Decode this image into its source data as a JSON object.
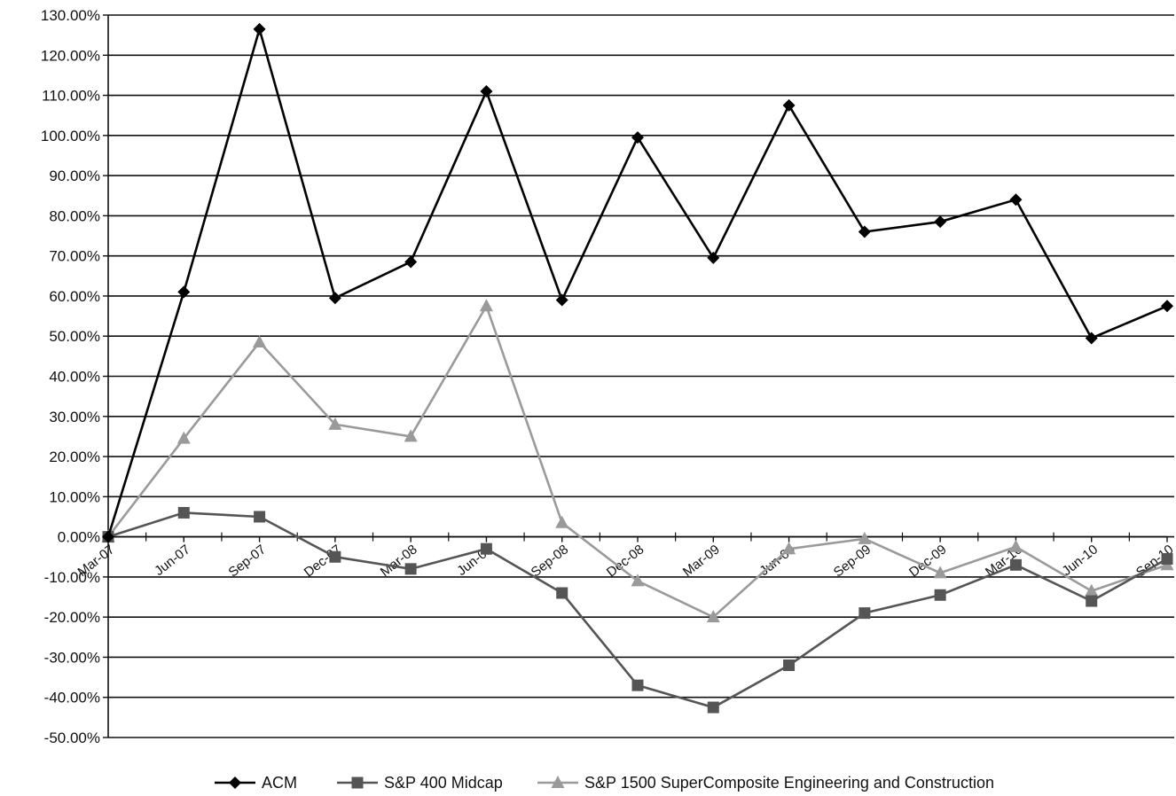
{
  "chart_data": {
    "type": "line",
    "title": "",
    "xlabel": "",
    "ylabel": "",
    "categories": [
      "Mar-07",
      "Jun-07",
      "Sep-07",
      "Dec-07",
      "Mar-08",
      "Jun-08",
      "Sep-08",
      "Dec-08",
      "Mar-09",
      "Jun-09",
      "Sep-09",
      "Dec-09",
      "Mar-10",
      "Jun-10",
      "Sep-10"
    ],
    "ylim": [
      -50,
      130
    ],
    "ytick_step": 10,
    "ytick_labels": [
      "130.00%",
      "120.00%",
      "110.00%",
      "100.00%",
      "90.00%",
      "80.00%",
      "70.00%",
      "60.00%",
      "50.00%",
      "40.00%",
      "30.00%",
      "20.00%",
      "10.00%",
      "0.00%",
      "-10.00%",
      "-20.00%",
      "-30.00%",
      "-40.00%",
      "-50.00%"
    ],
    "grid": true,
    "legend_position": "bottom",
    "series": [
      {
        "name": "ACM",
        "color": "#000000",
        "marker": "diamond",
        "values": [
          0,
          61,
          126.5,
          59.5,
          68.5,
          111,
          59,
          99.5,
          69.5,
          107.5,
          76,
          78.5,
          84,
          49.5,
          57.5
        ]
      },
      {
        "name": "S&P 400 Midcap",
        "color": "#555555",
        "marker": "square",
        "values": [
          0,
          6,
          5,
          -5,
          -8,
          -3,
          -14,
          -37,
          -42.5,
          -32,
          -19,
          -14.5,
          -7,
          -16,
          -5.5
        ]
      },
      {
        "name": "S&P 1500 SuperComposite Engineering and Construction",
        "color": "#9a9a9a",
        "marker": "triangle",
        "values": [
          0,
          24.5,
          48.5,
          28,
          25,
          57.5,
          3.5,
          -11,
          -20,
          -3,
          -0.5,
          -9,
          -2.5,
          -13.5,
          -7
        ]
      }
    ]
  }
}
